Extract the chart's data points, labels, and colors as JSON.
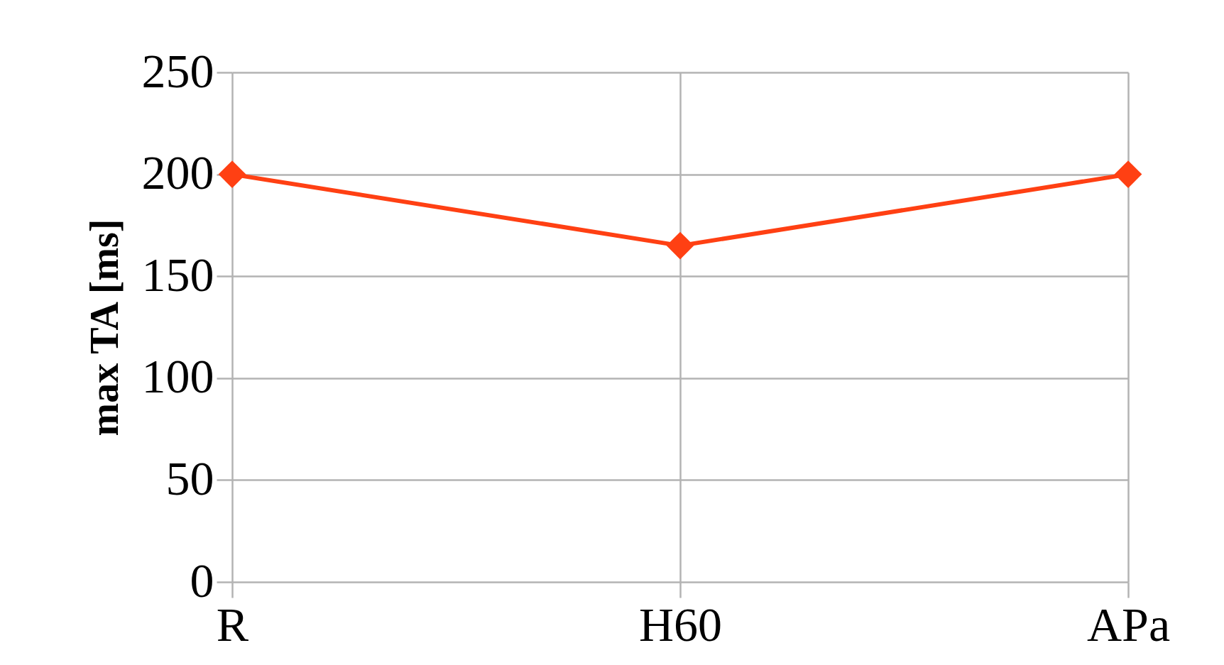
{
  "chart_data": {
    "type": "line",
    "ylabel": "max TA [ms]",
    "categories": [
      "R",
      "H60",
      "APa"
    ],
    "series": [
      {
        "color": "#ff4013",
        "values": [
          200,
          165,
          200
        ]
      }
    ],
    "ylim": [
      0,
      250
    ],
    "yticks": [
      0,
      50,
      100,
      150,
      200,
      250
    ],
    "grid": true,
    "legend": false,
    "marker": "diamond",
    "line_style": "solid"
  }
}
